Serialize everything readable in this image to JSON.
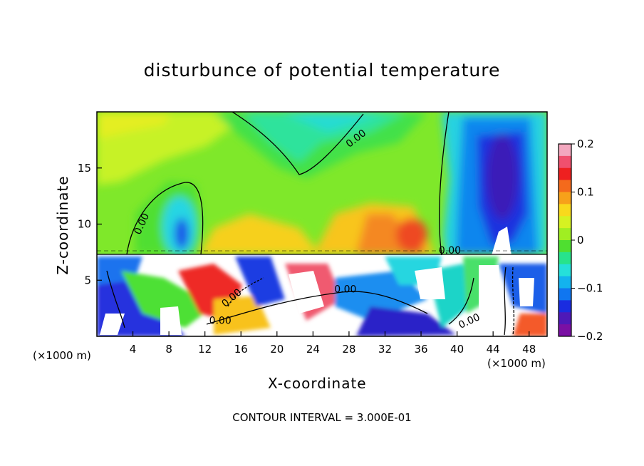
{
  "chart_data": {
    "type": "heatmap",
    "title": "disturbunce of potential temperature",
    "xlabel": "X-coordinate",
    "ylabel": "Z-coordinate",
    "x_unit_label": "(×1000 m)",
    "z_unit_label": "(×1000 m)",
    "footnote": "CONTOUR INTERVAL = 3.000E-01",
    "xlim": [
      0,
      50
    ],
    "ylim": [
      0,
      20
    ],
    "x_ticks": [
      4,
      8,
      12,
      16,
      20,
      24,
      28,
      32,
      36,
      40,
      44,
      48
    ],
    "x_tick_labels": [
      "4",
      "8",
      "12",
      "16",
      "20",
      "24",
      "28",
      "32",
      "36",
      "40",
      "44",
      "48"
    ],
    "y_ticks": [
      5,
      10,
      15
    ],
    "y_tick_labels": [
      "5",
      "10",
      "15"
    ],
    "colorbar": {
      "range": [
        -0.2,
        0.2
      ],
      "tick_values": [
        0.2,
        0.1,
        0,
        -0.1,
        -0.2
      ],
      "tick_labels": [
        "0.2",
        "0.1",
        "0",
        "−0.1",
        "−0.2"
      ],
      "colors": [
        "#f3a8bf",
        "#f0506e",
        "#ee2020",
        "#f46a1c",
        "#f7a11a",
        "#f9d91c",
        "#d6f222",
        "#a0ee22",
        "#4fdf30",
        "#27e38c",
        "#25e0da",
        "#13b3ee",
        "#1076f0",
        "#1a2ce0",
        "#4e19b8",
        "#7a10a4"
      ]
    },
    "contour_labels": [
      "0.00",
      "0.00",
      "0.00",
      "0.00",
      "0.00",
      "0.00",
      "0.00"
    ]
  }
}
